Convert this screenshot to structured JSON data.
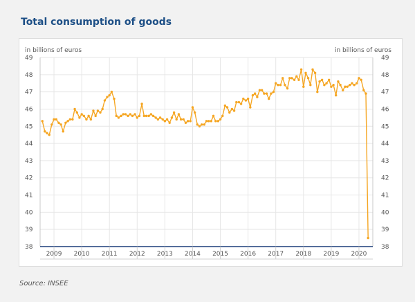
{
  "title": "Total consumption of goods",
  "source": "Source: INSEE",
  "chart_data": {
    "type": "line",
    "ylabel_left": "in billions of euros",
    "ylabel_right": "in billions of euros",
    "ylim": [
      38,
      49
    ],
    "yticks": [
      38,
      39,
      40,
      41,
      42,
      43,
      44,
      45,
      46,
      47,
      48,
      49
    ],
    "xlim": [
      2008.5,
      2020.5
    ],
    "xticks": [
      "2009",
      "2010",
      "2011",
      "2012",
      "2013",
      "2014",
      "2015",
      "2016",
      "2017",
      "2018",
      "2019",
      "2020"
    ],
    "grid": true,
    "series": [
      {
        "color": "#f5a623",
        "points": [
          [
            2008.58,
            45.3
          ],
          [
            2008.67,
            44.7
          ],
          [
            2008.75,
            44.6
          ],
          [
            2008.83,
            44.5
          ],
          [
            2008.92,
            45.1
          ],
          [
            2009.0,
            45.4
          ],
          [
            2009.08,
            45.4
          ],
          [
            2009.17,
            45.2
          ],
          [
            2009.25,
            45.1
          ],
          [
            2009.33,
            44.7
          ],
          [
            2009.42,
            45.2
          ],
          [
            2009.5,
            45.3
          ],
          [
            2009.58,
            45.4
          ],
          [
            2009.67,
            45.4
          ],
          [
            2009.75,
            46.0
          ],
          [
            2009.83,
            45.8
          ],
          [
            2009.92,
            45.5
          ],
          [
            2010.0,
            45.7
          ],
          [
            2010.08,
            45.6
          ],
          [
            2010.17,
            45.4
          ],
          [
            2010.25,
            45.6
          ],
          [
            2010.33,
            45.4
          ],
          [
            2010.42,
            45.9
          ],
          [
            2010.5,
            45.6
          ],
          [
            2010.58,
            45.9
          ],
          [
            2010.67,
            45.8
          ],
          [
            2010.75,
            46.0
          ],
          [
            2010.83,
            46.5
          ],
          [
            2010.92,
            46.7
          ],
          [
            2011.0,
            46.8
          ],
          [
            2011.08,
            47.0
          ],
          [
            2011.17,
            46.6
          ],
          [
            2011.25,
            45.6
          ],
          [
            2011.33,
            45.5
          ],
          [
            2011.42,
            45.6
          ],
          [
            2011.5,
            45.7
          ],
          [
            2011.58,
            45.7
          ],
          [
            2011.67,
            45.6
          ],
          [
            2011.75,
            45.7
          ],
          [
            2011.83,
            45.6
          ],
          [
            2011.92,
            45.7
          ],
          [
            2012.0,
            45.5
          ],
          [
            2012.08,
            45.6
          ],
          [
            2012.17,
            46.3
          ],
          [
            2012.25,
            45.6
          ],
          [
            2012.33,
            45.6
          ],
          [
            2012.42,
            45.6
          ],
          [
            2012.5,
            45.7
          ],
          [
            2012.58,
            45.6
          ],
          [
            2012.67,
            45.5
          ],
          [
            2012.75,
            45.4
          ],
          [
            2012.83,
            45.5
          ],
          [
            2012.92,
            45.4
          ],
          [
            2013.0,
            45.3
          ],
          [
            2013.08,
            45.4
          ],
          [
            2013.17,
            45.2
          ],
          [
            2013.25,
            45.5
          ],
          [
            2013.33,
            45.8
          ],
          [
            2013.42,
            45.4
          ],
          [
            2013.5,
            45.7
          ],
          [
            2013.58,
            45.4
          ],
          [
            2013.67,
            45.4
          ],
          [
            2013.75,
            45.2
          ],
          [
            2013.83,
            45.3
          ],
          [
            2013.92,
            45.3
          ],
          [
            2014.0,
            46.1
          ],
          [
            2014.08,
            45.8
          ],
          [
            2014.17,
            45.1
          ],
          [
            2014.25,
            45.0
          ],
          [
            2014.33,
            45.1
          ],
          [
            2014.42,
            45.1
          ],
          [
            2014.5,
            45.3
          ],
          [
            2014.58,
            45.3
          ],
          [
            2014.67,
            45.3
          ],
          [
            2014.75,
            45.6
          ],
          [
            2014.83,
            45.3
          ],
          [
            2014.92,
            45.3
          ],
          [
            2015.0,
            45.4
          ],
          [
            2015.08,
            45.6
          ],
          [
            2015.17,
            46.2
          ],
          [
            2015.25,
            46.1
          ],
          [
            2015.33,
            45.8
          ],
          [
            2015.42,
            46.0
          ],
          [
            2015.5,
            45.9
          ],
          [
            2015.58,
            46.4
          ],
          [
            2015.67,
            46.4
          ],
          [
            2015.75,
            46.3
          ],
          [
            2015.83,
            46.6
          ],
          [
            2015.92,
            46.5
          ],
          [
            2016.0,
            46.6
          ],
          [
            2016.08,
            46.1
          ],
          [
            2016.17,
            46.8
          ],
          [
            2016.25,
            46.9
          ],
          [
            2016.33,
            46.7
          ],
          [
            2016.42,
            47.1
          ],
          [
            2016.5,
            47.1
          ],
          [
            2016.58,
            46.9
          ],
          [
            2016.67,
            46.9
          ],
          [
            2016.75,
            46.6
          ],
          [
            2016.83,
            46.9
          ],
          [
            2016.92,
            47.0
          ],
          [
            2017.0,
            47.5
          ],
          [
            2017.08,
            47.4
          ],
          [
            2017.17,
            47.4
          ],
          [
            2017.25,
            47.8
          ],
          [
            2017.33,
            47.4
          ],
          [
            2017.42,
            47.2
          ],
          [
            2017.5,
            47.8
          ],
          [
            2017.58,
            47.8
          ],
          [
            2017.67,
            47.7
          ],
          [
            2017.75,
            47.9
          ],
          [
            2017.83,
            47.7
          ],
          [
            2017.92,
            48.3
          ],
          [
            2018.0,
            47.3
          ],
          [
            2018.08,
            48.1
          ],
          [
            2018.17,
            47.8
          ],
          [
            2018.25,
            47.4
          ],
          [
            2018.33,
            48.3
          ],
          [
            2018.42,
            48.1
          ],
          [
            2018.5,
            47.0
          ],
          [
            2018.58,
            47.6
          ],
          [
            2018.67,
            47.7
          ],
          [
            2018.75,
            47.4
          ],
          [
            2018.83,
            47.5
          ],
          [
            2018.92,
            47.7
          ],
          [
            2019.0,
            47.3
          ],
          [
            2019.08,
            47.4
          ],
          [
            2019.17,
            46.8
          ],
          [
            2019.25,
            47.6
          ],
          [
            2019.33,
            47.4
          ],
          [
            2019.42,
            47.1
          ],
          [
            2019.5,
            47.3
          ],
          [
            2019.58,
            47.3
          ],
          [
            2019.67,
            47.4
          ],
          [
            2019.75,
            47.5
          ],
          [
            2019.83,
            47.4
          ],
          [
            2019.92,
            47.5
          ],
          [
            2020.0,
            47.8
          ],
          [
            2020.08,
            47.7
          ],
          [
            2020.17,
            47.1
          ],
          [
            2020.25,
            46.9
          ],
          [
            2020.33,
            38.5
          ]
        ]
      }
    ]
  }
}
